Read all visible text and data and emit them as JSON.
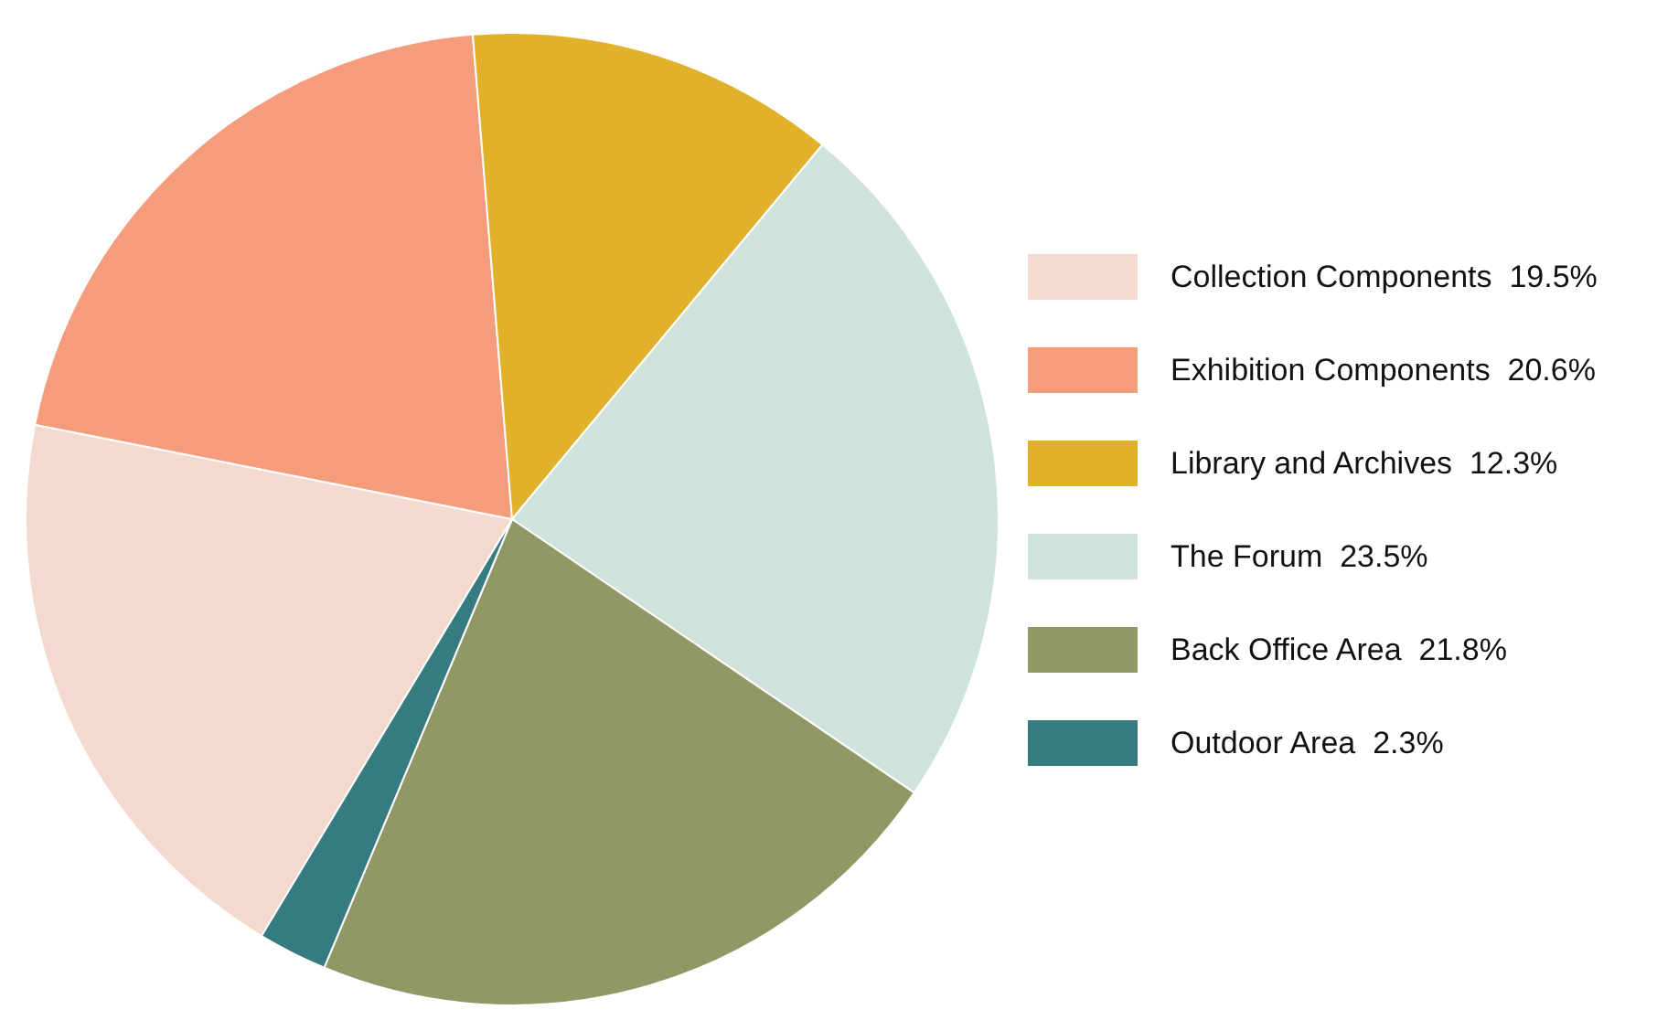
{
  "chart_data": {
    "type": "pie",
    "categories": [
      "Collection Components",
      "Exhibition Components",
      "Library and Archives",
      "The Forum",
      "Back Office Area",
      "Outdoor Area"
    ],
    "values": [
      19.5,
      20.6,
      12.3,
      23.5,
      21.8,
      2.3
    ],
    "value_labels": [
      "19.5%",
      "20.6%",
      "12.3%",
      "23.5%",
      "21.8%",
      "2.3%"
    ],
    "colors": [
      "#f4d9cf",
      "#f59c7c",
      "#e2b12b",
      "#cfe3db",
      "#929865",
      "#367b80"
    ],
    "legend": "right"
  }
}
